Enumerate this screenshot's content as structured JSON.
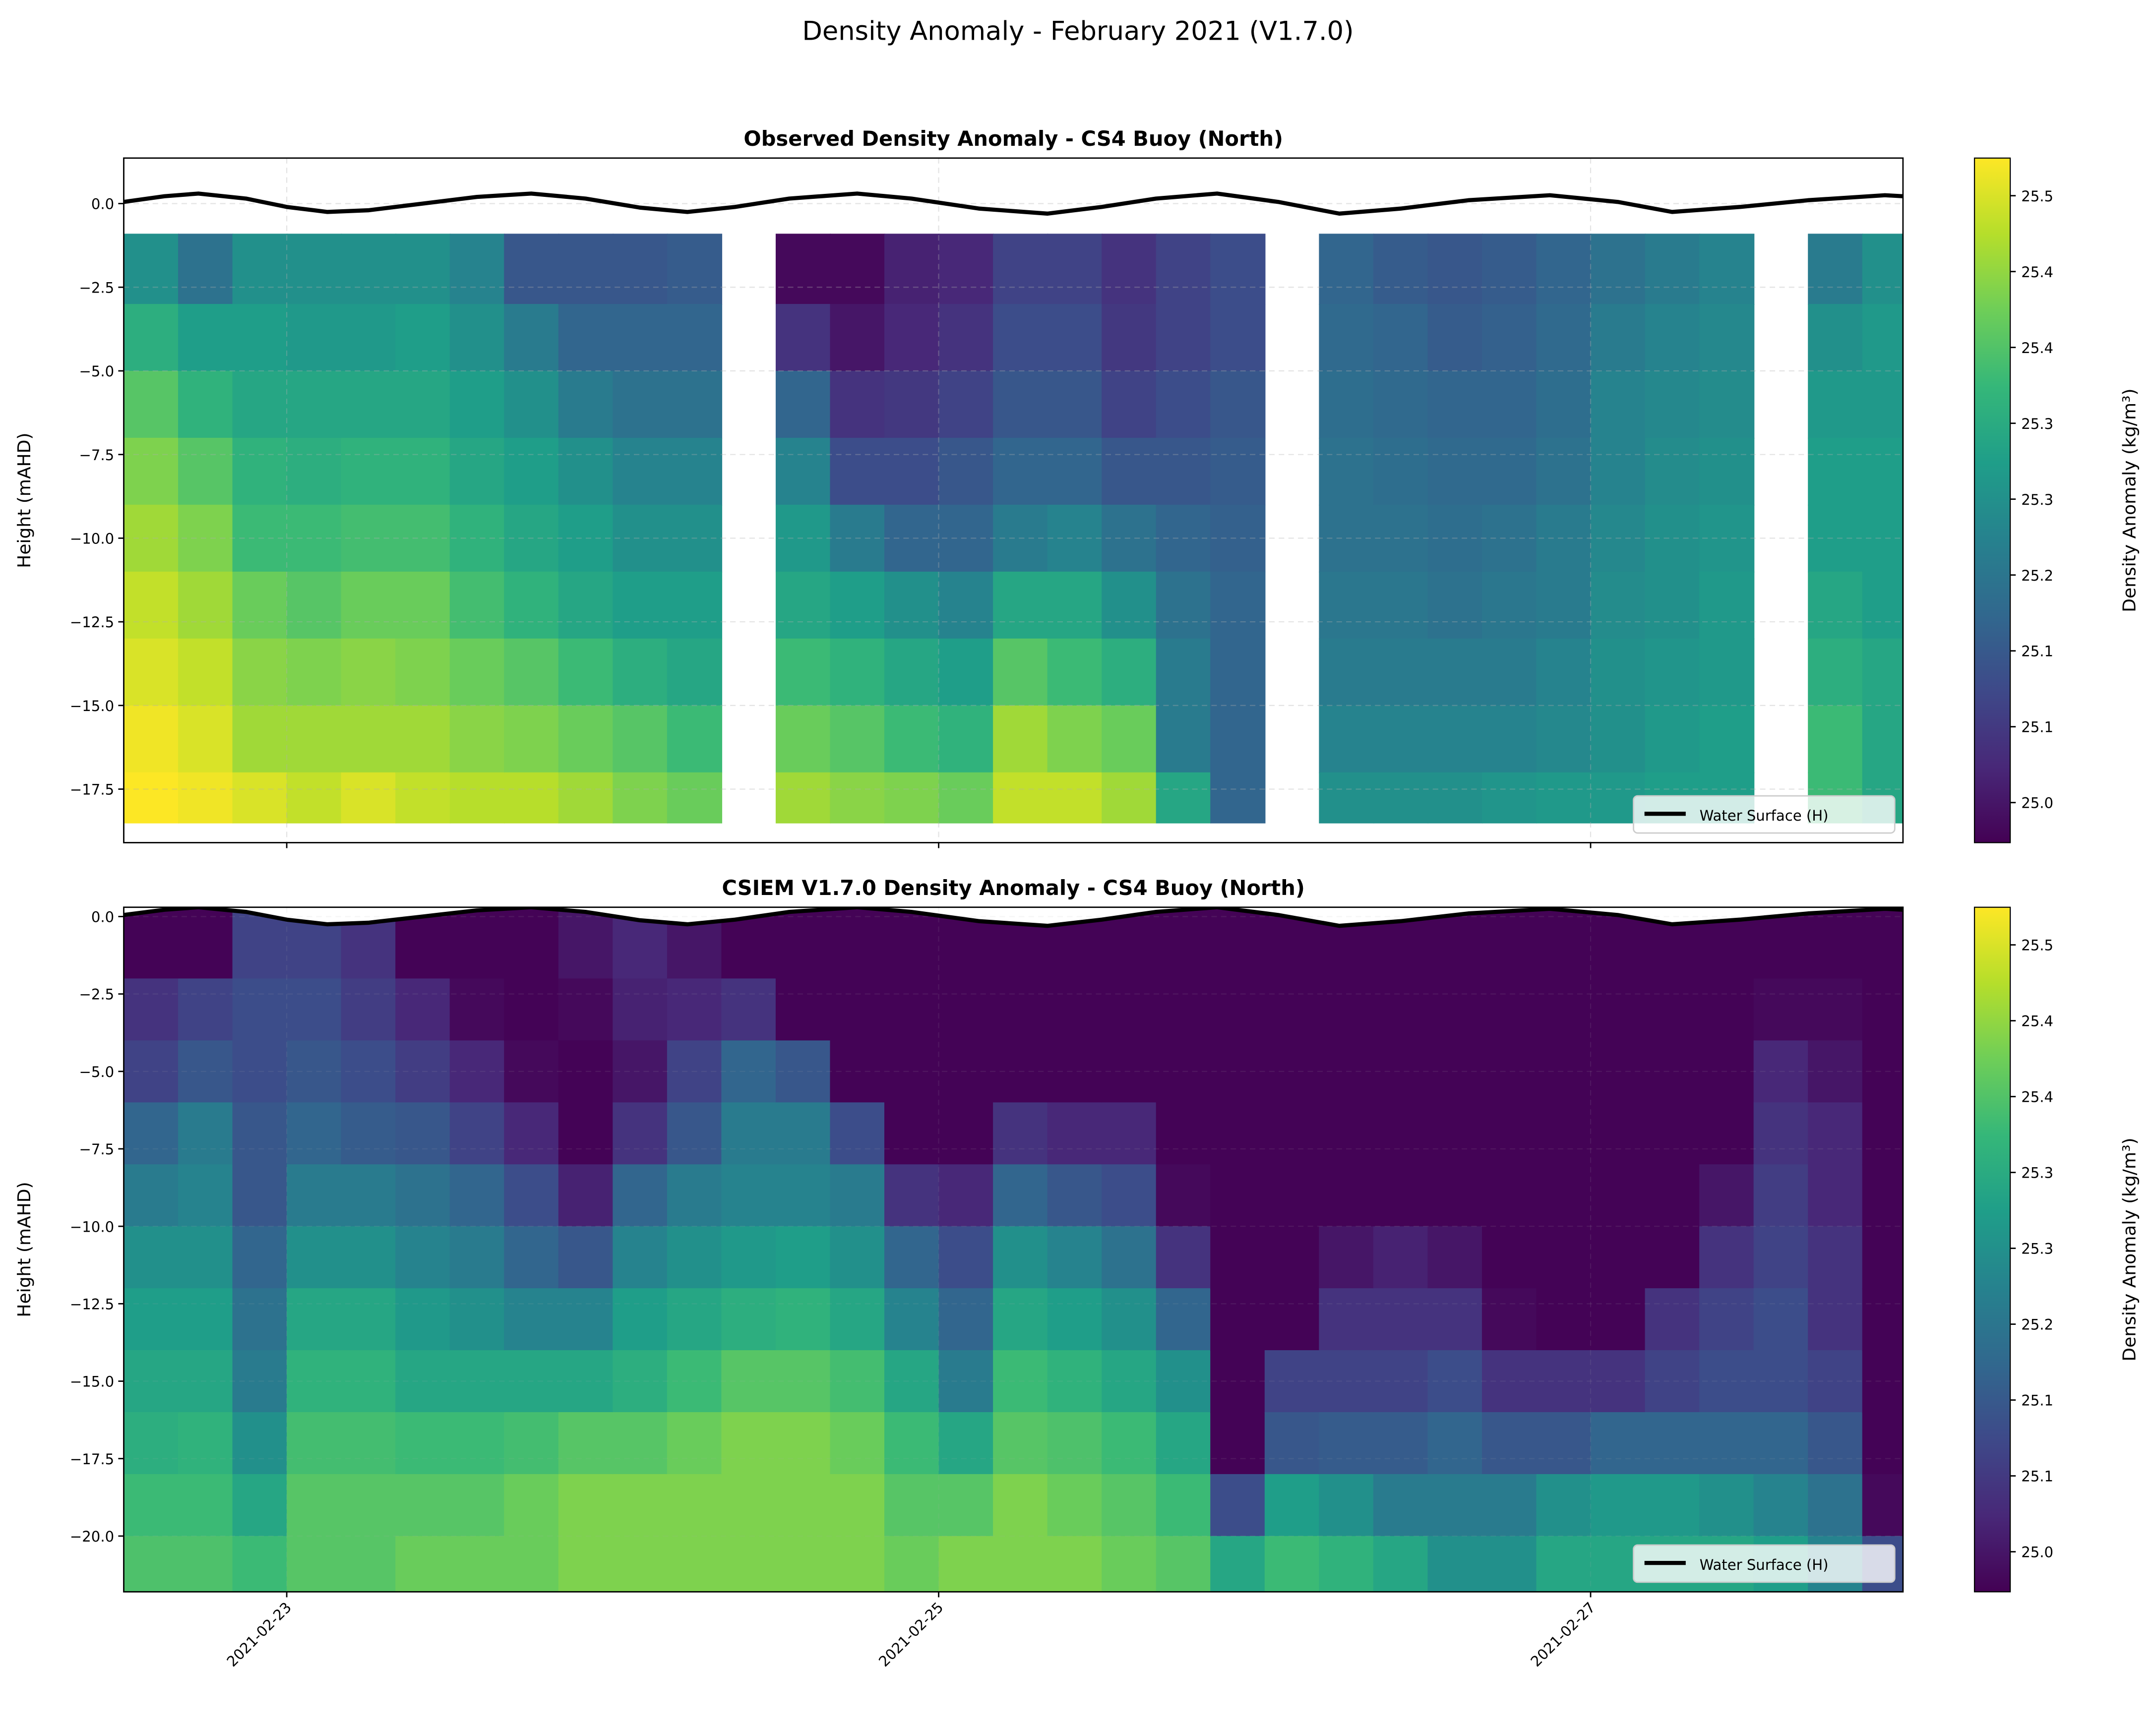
{
  "suptitle": "Density Anomaly - February 2021 (V1.7.0)",
  "chart_data": [
    {
      "type": "heatmap",
      "title": "Observed Density Anomaly - CS4 Buoy (North)",
      "ylabel": "Height (mAHD)",
      "xlabel": "",
      "colorbar_label": "Density Anomaly (kg/m³)",
      "colormap": "viridis",
      "clim": [
        24.967,
        25.531
      ],
      "colorbar_ticks": [
        25.0,
        25.0625,
        25.125,
        25.1875,
        25.25,
        25.3125,
        25.375,
        25.4375,
        25.5
      ],
      "colorbar_tick_labels": [
        "25.0",
        "25.1",
        "25.1",
        "25.2",
        "25.3",
        "25.3",
        "25.4",
        "25.4",
        "25.5"
      ],
      "xlim": [
        "2021-02-22 12:00",
        "2021-02-27 23:00"
      ],
      "ylim": [
        -19.1,
        1.36
      ],
      "yticks": [
        0.0,
        -2.5,
        -5.0,
        -7.5,
        -10.0,
        -12.5,
        -15.0,
        -17.5
      ],
      "ytick_labels": [
        "0.0",
        "−2.5",
        "−5.0",
        "−7.5",
        "−10.0",
        "−12.5",
        "−15.0",
        "−17.5"
      ],
      "xticks": [
        "2021-02-23",
        "2021-02-25",
        "2021-02-27"
      ],
      "xtick_labels_visible": false,
      "grid": true,
      "legend": {
        "label": "Water Surface (H)",
        "placement": "lower right"
      },
      "depth_edges": [
        -0.9,
        -3,
        -5,
        -7,
        -9,
        -11,
        -13,
        -15,
        -17,
        -18.5
      ],
      "times": [
        "2021-02-22 12:00",
        "2021-02-22 16:00",
        "2021-02-22 20:00",
        "2021-02-23 00:00",
        "2021-02-23 04:00",
        "2021-02-23 08:00",
        "2021-02-23 12:00",
        "2021-02-23 16:00",
        "2021-02-23 20:00",
        "2021-02-24 00:00",
        "2021-02-24 04:00",
        "2021-02-24 08:00",
        "2021-02-24 12:00",
        "2021-02-24 16:00",
        "2021-02-24 20:00",
        "2021-02-25 00:00",
        "2021-02-25 04:00",
        "2021-02-25 08:00",
        "2021-02-25 12:00",
        "2021-02-25 16:00",
        "2021-02-25 20:00",
        "2021-02-26 00:00",
        "2021-02-26 04:00",
        "2021-02-26 08:00",
        "2021-02-26 12:00",
        "2021-02-26 16:00",
        "2021-02-26 20:00",
        "2021-02-27 00:00",
        "2021-02-27 04:00",
        "2021-02-27 08:00",
        "2021-02-27 12:00",
        "2021-02-27 16:00",
        "2021-02-27 20:00"
      ],
      "values": [
        [
          25.25,
          25.32,
          25.38,
          25.42,
          25.45,
          25.48,
          25.5,
          25.52,
          25.53
        ],
        [
          25.18,
          25.28,
          25.33,
          25.38,
          25.42,
          25.45,
          25.48,
          25.5,
          25.52
        ],
        [
          25.25,
          25.28,
          25.3,
          25.33,
          25.35,
          25.4,
          25.43,
          25.45,
          25.5
        ],
        [
          25.25,
          25.27,
          25.3,
          25.32,
          25.35,
          25.38,
          25.42,
          25.45,
          25.48
        ],
        [
          25.25,
          25.27,
          25.3,
          25.33,
          25.36,
          25.4,
          25.43,
          25.45,
          25.5
        ],
        [
          25.25,
          25.28,
          25.3,
          25.33,
          25.36,
          25.4,
          25.42,
          25.45,
          25.48
        ],
        [
          25.22,
          25.25,
          25.28,
          25.3,
          25.33,
          25.36,
          25.4,
          25.43,
          25.47
        ],
        [
          25.12,
          25.2,
          25.25,
          25.28,
          25.3,
          25.33,
          25.38,
          25.42,
          25.47
        ],
        [
          25.12,
          25.15,
          25.2,
          25.25,
          25.28,
          25.3,
          25.35,
          25.4,
          25.45
        ],
        [
          25.12,
          25.15,
          25.18,
          25.22,
          25.25,
          25.28,
          25.32,
          25.38,
          25.42
        ],
        [
          25.13,
          25.15,
          25.18,
          25.22,
          25.25,
          25.28,
          25.3,
          25.35,
          25.4
        ],
        [
          null,
          null,
          null,
          null,
          null,
          null,
          null,
          null,
          null
        ],
        [
          24.98,
          25.05,
          25.15,
          25.22,
          25.27,
          25.3,
          25.35,
          25.4,
          25.45
        ],
        [
          24.98,
          25.0,
          25.05,
          25.1,
          25.2,
          25.28,
          25.33,
          25.38,
          25.43
        ],
        [
          25.02,
          25.03,
          25.06,
          25.1,
          25.15,
          25.25,
          25.3,
          25.35,
          25.42
        ],
        [
          25.03,
          25.05,
          25.08,
          25.12,
          25.15,
          25.22,
          25.28,
          25.33,
          25.4
        ],
        [
          25.08,
          25.1,
          25.12,
          25.15,
          25.2,
          25.3,
          25.38,
          25.45,
          25.48
        ],
        [
          25.08,
          25.1,
          25.12,
          25.15,
          25.22,
          25.3,
          25.35,
          25.42,
          25.48
        ],
        [
          25.05,
          25.06,
          25.08,
          25.12,
          25.18,
          25.25,
          25.32,
          25.4,
          25.45
        ],
        [
          25.08,
          25.08,
          25.1,
          25.12,
          25.15,
          25.18,
          25.2,
          25.2,
          25.3
        ],
        [
          25.1,
          25.1,
          25.12,
          25.13,
          25.14,
          25.15,
          25.15,
          25.15,
          25.15
        ],
        [
          null,
          null,
          null,
          null,
          null,
          null,
          null,
          null,
          null
        ],
        [
          25.15,
          25.16,
          25.17,
          25.18,
          25.18,
          25.19,
          25.2,
          25.22,
          25.25
        ],
        [
          25.13,
          25.15,
          25.16,
          25.17,
          25.18,
          25.19,
          25.2,
          25.22,
          25.25
        ],
        [
          25.12,
          25.13,
          25.15,
          25.16,
          25.17,
          25.18,
          25.2,
          25.22,
          25.25
        ],
        [
          25.13,
          25.14,
          25.15,
          25.16,
          25.18,
          25.19,
          25.2,
          25.22,
          25.26
        ],
        [
          25.15,
          25.16,
          25.17,
          25.18,
          25.2,
          25.2,
          25.22,
          25.23,
          25.27
        ],
        [
          25.18,
          25.2,
          25.22,
          25.22,
          25.23,
          25.24,
          25.25,
          25.25,
          25.27
        ],
        [
          25.2,
          25.22,
          25.23,
          25.24,
          25.25,
          25.25,
          25.26,
          25.27,
          25.28
        ],
        [
          25.22,
          25.23,
          25.24,
          25.25,
          25.26,
          25.27,
          25.27,
          25.28,
          25.28
        ],
        [
          null,
          null,
          null,
          null,
          null,
          null,
          null,
          null,
          null
        ],
        [
          25.2,
          25.25,
          25.27,
          25.28,
          25.28,
          25.3,
          25.32,
          25.35,
          25.35
        ],
        [
          25.25,
          25.27,
          25.27,
          25.28,
          25.28,
          25.28,
          25.3,
          25.3,
          25.3
        ]
      ]
    },
    {
      "type": "heatmap",
      "title": "CSIEM V1.7.0 Density Anomaly - CS4 Buoy (North)",
      "ylabel": "Height (mAHD)",
      "xlabel": "",
      "colorbar_label": "Density Anomaly (kg/m³)",
      "colormap": "viridis",
      "clim": [
        24.967,
        25.531
      ],
      "colorbar_ticks": [
        25.0,
        25.0625,
        25.125,
        25.1875,
        25.25,
        25.3125,
        25.375,
        25.4375,
        25.5
      ],
      "colorbar_tick_labels": [
        "25.0",
        "25.1",
        "25.1",
        "25.2",
        "25.3",
        "25.3",
        "25.4",
        "25.4",
        "25.5"
      ],
      "xlim": [
        "2021-02-22 12:00",
        "2021-02-27 23:00"
      ],
      "ylim": [
        -21.8,
        0.3
      ],
      "yticks": [
        0.0,
        -2.5,
        -5.0,
        -7.5,
        -10.0,
        -12.5,
        -15.0,
        -17.5,
        -20.0
      ],
      "ytick_labels": [
        "0.0",
        "−2.5",
        "−5.0",
        "−7.5",
        "−10.0",
        "−12.5",
        "−15.0",
        "−17.5",
        "−20.0"
      ],
      "xticks": [
        "2021-02-23",
        "2021-02-25",
        "2021-02-27"
      ],
      "xtick_labels": [
        "2021-02-23",
        "2021-02-25",
        "2021-02-27"
      ],
      "grid": true,
      "legend": {
        "label": "Water Surface (H)",
        "placement": "lower right"
      },
      "depth_edges": [
        0.3,
        -2,
        -4,
        -6,
        -8,
        -10,
        -12,
        -14,
        -16,
        -18,
        -20,
        -21.8
      ],
      "values": [
        [
          24.97,
          25.05,
          25.08,
          25.15,
          25.2,
          25.25,
          25.28,
          25.3,
          25.32,
          25.35,
          25.37
        ],
        [
          24.97,
          25.08,
          25.12,
          25.2,
          25.22,
          25.25,
          25.28,
          25.3,
          25.33,
          25.35,
          25.37
        ],
        [
          25.08,
          25.1,
          25.1,
          25.12,
          25.12,
          25.15,
          25.18,
          25.2,
          25.25,
          25.3,
          25.35
        ],
        [
          25.08,
          25.1,
          25.12,
          25.15,
          25.2,
          25.25,
          25.3,
          25.33,
          25.36,
          25.38,
          25.38
        ],
        [
          25.05,
          25.07,
          25.1,
          25.13,
          25.2,
          25.25,
          25.3,
          25.33,
          25.36,
          25.38,
          25.38
        ],
        [
          24.97,
          25.03,
          25.07,
          25.12,
          25.18,
          25.22,
          25.27,
          25.3,
          25.35,
          25.38,
          25.4
        ],
        [
          24.97,
          24.98,
          25.03,
          25.08,
          25.15,
          25.2,
          25.25,
          25.3,
          25.35,
          25.38,
          25.4
        ],
        [
          24.97,
          24.97,
          24.98,
          25.03,
          25.1,
          25.15,
          25.22,
          25.3,
          25.36,
          25.4,
          25.4
        ],
        [
          25.0,
          24.98,
          24.97,
          24.97,
          25.02,
          25.12,
          25.22,
          25.3,
          25.38,
          25.42,
          25.42
        ],
        [
          25.03,
          25.02,
          25.0,
          25.05,
          25.15,
          25.22,
          25.28,
          25.32,
          25.38,
          25.42,
          25.42
        ],
        [
          25.0,
          25.03,
          25.08,
          25.12,
          25.2,
          25.25,
          25.3,
          25.35,
          25.4,
          25.42,
          25.42
        ],
        [
          24.97,
          25.05,
          25.15,
          25.2,
          25.22,
          25.27,
          25.32,
          25.38,
          25.42,
          25.42,
          25.42
        ],
        [
          24.97,
          24.97,
          25.12,
          25.2,
          25.22,
          25.28,
          25.33,
          25.38,
          25.42,
          25.42,
          25.42
        ],
        [
          24.97,
          24.97,
          24.97,
          25.1,
          25.2,
          25.25,
          25.3,
          25.36,
          25.4,
          25.42,
          25.42
        ],
        [
          24.97,
          24.97,
          24.97,
          24.97,
          25.05,
          25.15,
          25.22,
          25.3,
          25.35,
          25.38,
          25.4
        ],
        [
          24.97,
          24.97,
          24.97,
          24.97,
          25.03,
          25.1,
          25.15,
          25.2,
          25.3,
          25.38,
          25.42
        ],
        [
          24.97,
          24.97,
          24.97,
          25.05,
          25.15,
          25.25,
          25.3,
          25.35,
          25.38,
          25.42,
          25.42
        ],
        [
          24.97,
          24.97,
          24.97,
          25.03,
          25.12,
          25.22,
          25.28,
          25.33,
          25.37,
          25.4,
          25.42
        ],
        [
          24.97,
          24.97,
          24.97,
          25.03,
          25.1,
          25.18,
          25.25,
          25.3,
          25.35,
          25.38,
          25.4
        ],
        [
          24.97,
          24.97,
          24.97,
          24.97,
          24.98,
          25.05,
          25.15,
          25.25,
          25.3,
          25.35,
          25.38
        ],
        [
          24.97,
          24.97,
          24.97,
          24.97,
          24.97,
          24.97,
          24.97,
          24.97,
          24.97,
          25.1,
          25.3
        ],
        [
          24.97,
          24.97,
          24.97,
          24.97,
          24.97,
          24.97,
          24.97,
          25.08,
          25.12,
          25.28,
          25.35
        ],
        [
          24.97,
          24.97,
          24.97,
          24.97,
          24.97,
          25.0,
          25.05,
          25.08,
          25.13,
          25.25,
          25.33
        ],
        [
          24.97,
          24.97,
          24.97,
          24.97,
          24.97,
          25.02,
          25.05,
          25.08,
          25.13,
          25.2,
          25.3
        ],
        [
          24.97,
          24.97,
          24.97,
          24.97,
          24.97,
          25.0,
          25.05,
          25.1,
          25.15,
          25.2,
          25.25
        ],
        [
          24.97,
          24.97,
          24.97,
          24.97,
          24.97,
          24.97,
          24.98,
          25.05,
          25.12,
          25.2,
          25.25
        ],
        [
          24.97,
          24.97,
          24.97,
          24.97,
          24.97,
          24.97,
          24.97,
          25.05,
          25.12,
          25.25,
          25.3
        ],
        [
          24.97,
          24.97,
          24.97,
          24.97,
          24.97,
          24.97,
          24.97,
          25.05,
          25.15,
          25.27,
          25.3
        ],
        [
          24.97,
          24.97,
          24.97,
          24.97,
          24.97,
          24.97,
          25.05,
          25.08,
          25.15,
          25.27,
          25.3
        ],
        [
          24.97,
          24.97,
          24.97,
          24.97,
          25.0,
          25.05,
          25.08,
          25.1,
          25.15,
          25.25,
          25.3
        ],
        [
          24.97,
          24.98,
          25.03,
          25.05,
          25.07,
          25.08,
          25.1,
          25.1,
          25.15,
          25.22,
          25.28
        ],
        [
          24.97,
          24.98,
          25.0,
          25.03,
          25.03,
          25.05,
          25.05,
          25.08,
          25.12,
          25.18,
          25.22
        ],
        [
          24.97,
          24.97,
          24.97,
          24.97,
          24.97,
          24.97,
          24.97,
          24.97,
          24.97,
          24.98,
          25.1
        ]
      ]
    }
  ],
  "water_surface": {
    "label": "Water Surface (H)",
    "color": "#000000",
    "points": [
      [
        "2021-02-22 12:00",
        0.05
      ],
      [
        "2021-02-22 15:00",
        0.22
      ],
      [
        "2021-02-22 17:30",
        0.3
      ],
      [
        "2021-02-22 21:00",
        0.15
      ],
      [
        "2021-02-23 00:00",
        -0.1
      ],
      [
        "2021-02-23 03:00",
        -0.25
      ],
      [
        "2021-02-23 06:00",
        -0.2
      ],
      [
        "2021-02-23 10:00",
        0.0
      ],
      [
        "2021-02-23 14:00",
        0.2
      ],
      [
        "2021-02-23 18:00",
        0.3
      ],
      [
        "2021-02-23 22:00",
        0.15
      ],
      [
        "2021-02-24 02:00",
        -0.12
      ],
      [
        "2021-02-24 05:30",
        -0.25
      ],
      [
        "2021-02-24 09:00",
        -0.1
      ],
      [
        "2021-02-24 13:00",
        0.15
      ],
      [
        "2021-02-24 18:00",
        0.3
      ],
      [
        "2021-02-24 22:00",
        0.15
      ],
      [
        "2021-02-25 03:00",
        -0.15
      ],
      [
        "2021-02-25 08:00",
        -0.3
      ],
      [
        "2021-02-25 12:00",
        -0.1
      ],
      [
        "2021-02-25 16:00",
        0.15
      ],
      [
        "2021-02-25 20:30",
        0.3
      ],
      [
        "2021-02-26 01:00",
        0.05
      ],
      [
        "2021-02-26 05:30",
        -0.3
      ],
      [
        "2021-02-26 10:00",
        -0.15
      ],
      [
        "2021-02-26 15:00",
        0.1
      ],
      [
        "2021-02-26 21:00",
        0.25
      ],
      [
        "2021-02-27 02:00",
        0.05
      ],
      [
        "2021-02-27 06:00",
        -0.25
      ],
      [
        "2021-02-27 11:00",
        -0.1
      ],
      [
        "2021-02-27 16:00",
        0.1
      ],
      [
        "2021-02-27 21:40",
        0.25
      ],
      [
        "2021-02-27 23:00",
        0.22
      ]
    ]
  }
}
